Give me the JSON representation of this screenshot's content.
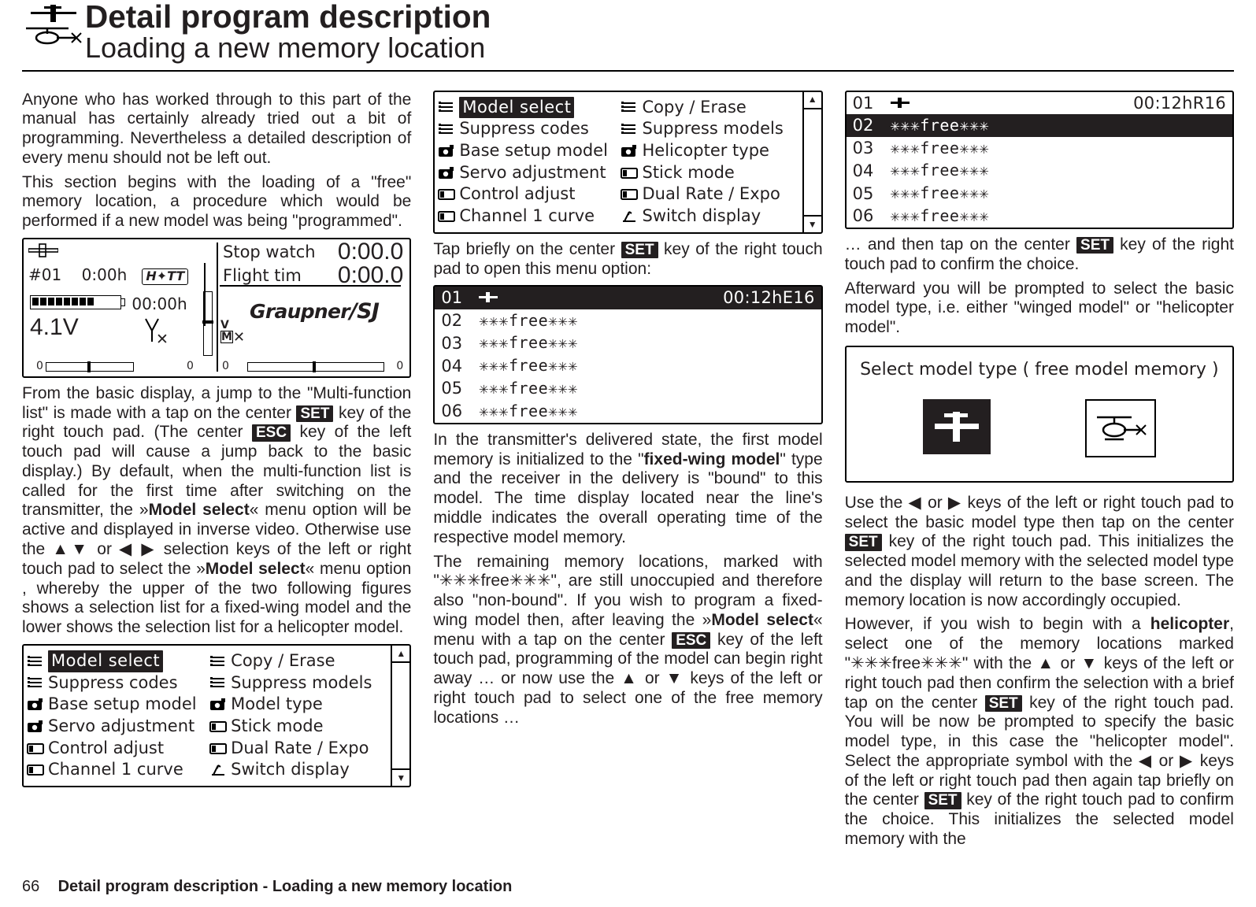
{
  "heading": {
    "title": "Detail program description",
    "subtitle": "Loading a new memory location"
  },
  "col1": {
    "p1": "Anyone who has worked through to this part of the manual has certainly already tried out a bit of programming. Nevertheless a detailed description of every menu should not be left out.",
    "p2": "This section begins with the loading of a \"free\" memory location, a procedure which would be performed if a new model was being \"programmed\".",
    "radio": {
      "slot": "#01",
      "flightclock": "0:00h",
      "total": "00:00h",
      "volt": "4.1V",
      "stopwatch_lbl": "Stop watch",
      "flighttim_lbl": "Flight tim",
      "t1": "0:00.0",
      "t2": "0:00.0",
      "logo": "Graupner",
      "logoSJ": "/SJ",
      "zero": "0",
      "m": "M",
      "v": "V"
    },
    "p3a": "From the basic display, a jump to the \"Multi-function list\" is made with a tap on the center ",
    "p3b": " key of the right touch pad. (The center ",
    "p3c": " key of the left touch pad will cause a jump back to the basic display.) By default, when the multi-function list is called for the first time after switching on the transmitter, the »",
    "p3d": "Model select",
    "p3e": "« menu option will be active and displayed in inverse video. Otherwise use the ",
    "p3f": " selection keys of the left or right touch pad to select the »",
    "p3g": "Model select",
    "p3h": "« menu option , whereby the upper of the two following figures shows a selection list for a fixed-wing model and the lower shows the selection list for a helicopter model.",
    "key_set": "SET",
    "key_esc": "ESC",
    "arrows_ud": "▲▼",
    "arrows_lr": "◀ ▶",
    "or": "or ",
    "menu1": {
      "left": [
        {
          "icon": "list",
          "label": "Model select",
          "sel": true
        },
        {
          "icon": "list",
          "label": "Suppress codes"
        },
        {
          "icon": "cam",
          "label": "Base setup model"
        },
        {
          "icon": "cam",
          "label": "Servo adjustment"
        },
        {
          "icon": "lcd",
          "label": "Control adjust"
        },
        {
          "icon": "lcd",
          "label": "Channel 1 curve"
        }
      ],
      "right": [
        {
          "icon": "list",
          "label": "Copy / Erase"
        },
        {
          "icon": "list",
          "label": "Suppress models"
        },
        {
          "icon": "cam",
          "label": "Model type"
        },
        {
          "icon": "lcd",
          "label": "Stick mode"
        },
        {
          "icon": "lcd",
          "label": "Dual Rate / Expo"
        },
        {
          "icon": "sw",
          "label": "Switch display"
        }
      ]
    }
  },
  "col2": {
    "menu2": {
      "left": [
        {
          "icon": "list",
          "label": "Model select",
          "sel": true
        },
        {
          "icon": "list",
          "label": "Suppress codes"
        },
        {
          "icon": "cam",
          "label": "Base setup model"
        },
        {
          "icon": "cam",
          "label": "Servo adjustment"
        },
        {
          "icon": "lcd",
          "label": "Control adjust"
        },
        {
          "icon": "lcd",
          "label": "Channel 1 curve"
        }
      ],
      "right": [
        {
          "icon": "list",
          "label": "Copy / Erase"
        },
        {
          "icon": "list",
          "label": "Suppress models"
        },
        {
          "icon": "cam",
          "label": "Helicopter type"
        },
        {
          "icon": "lcd",
          "label": "Stick mode"
        },
        {
          "icon": "lcd",
          "label": "Dual Rate / Expo"
        },
        {
          "icon": "sw",
          "label": "Switch display"
        }
      ]
    },
    "p1a": "Tap briefly on the center ",
    "p1b": " key of the right touch pad to open this menu option:",
    "key_set": "SET",
    "slots": {
      "header_num": "01",
      "header_time": "00:12hE16",
      "rows": [
        {
          "n": "02",
          "t": "✳✳✳free✳✳✳"
        },
        {
          "n": "03",
          "t": "✳✳✳free✳✳✳"
        },
        {
          "n": "04",
          "t": "✳✳✳free✳✳✳"
        },
        {
          "n": "05",
          "t": "✳✳✳free✳✳✳"
        },
        {
          "n": "06",
          "t": "✳✳✳free✳✳✳"
        }
      ]
    },
    "p2a": "In the transmitter's delivered state, the first model memory is initialized to the \"",
    "p2b": "fixed-wing model",
    "p2c": "\" type and the receiver in the delivery is \"bound\" to this model. The time display located near the line's middle indicates the overall operating time of the respective model memory.",
    "p3a": "The remaining memory locations, marked with \"✳✳✳free✳✳✳\", are still unoccupied and therefore also \"non-bound\". If you wish to program a fixed-wing model then, after leaving the »",
    "p3b": "Model select",
    "p3c": "« menu with a tap on the center ",
    "p3d": " key of the left touch pad, programming of the model can begin right away … or now use the ",
    "p3e": " keys of the left or right touch pad to select one of the free memory locations …",
    "key_esc": "ESC",
    "arrows_ud2": "▲ or ▼"
  },
  "col3": {
    "slots": {
      "header_num": "01",
      "header_time": "00:12hR16",
      "sel": "02",
      "rows": [
        {
          "n": "02",
          "t": "✳✳✳free✳✳✳",
          "sel": true
        },
        {
          "n": "03",
          "t": "✳✳✳free✳✳✳"
        },
        {
          "n": "04",
          "t": "✳✳✳free✳✳✳"
        },
        {
          "n": "05",
          "t": "✳✳✳free✳✳✳"
        },
        {
          "n": "06",
          "t": "✳✳✳free✳✳✳"
        }
      ]
    },
    "p1a": "… and then tap on the center ",
    "p1b": " key of the right touch pad to confirm the choice.",
    "p2": "Afterward you will be prompted to select the basic model type, i.e. either \"winged model\" or \"helicopter model\".",
    "key_set": "SET",
    "typepanel": {
      "title": "Select model type ( free  model memory )"
    },
    "p3a": "Use the ",
    "p3b": " keys of the left or right touch pad to select the basic model type then tap on the center ",
    "p3c": " key of the right touch pad. This initializes the selected model memory with the selected model type and the display will return to the base screen. The memory location is now accordingly occupied.",
    "arrows_lr": "◀ or ▶",
    "p4a": "However, if you wish to begin with a ",
    "p4b": "helicopter",
    "p4c": ", select one of the memory locations marked \"✳✳✳free✳✳✳\" with the ",
    "p4d": " keys of the left or right touch pad then confirm the selection with a brief tap on the center ",
    "p4e": " key of the right touch pad. You will be now be prompted to specify the basic model type, in this case the \"helicopter model\". Select the appropriate symbol with the ",
    "p4f": " keys of the left or right touch pad then again tap briefly on the center ",
    "p4g": " key of the right touch pad to confirm the choice. This initializes the selected model memory with the",
    "arrows_ud": "▲ or ▼"
  },
  "footer": {
    "page": "66",
    "text": "Detail program description - Loading a new memory location"
  },
  "icons": {
    "list": "≣",
    "cam": "▣",
    "lcd": "▭",
    "sw": "⤬"
  }
}
